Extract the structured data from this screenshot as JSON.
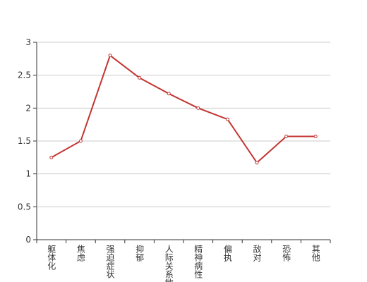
{
  "chart_data": {
    "type": "line",
    "categories": [
      "躯体化",
      "焦虑",
      "强迫症状",
      "抑郁",
      "人际关系敏感",
      "精神病性",
      "偏执",
      "敌对",
      "恐怖",
      "其他"
    ],
    "values": [
      1.25,
      1.5,
      2.8,
      2.46,
      2.22,
      2.0,
      1.83,
      1.17,
      1.57,
      1.57
    ],
    "color": "#c23531",
    "ylim": [
      0,
      3
    ],
    "yticks": [
      0,
      0.5,
      1,
      1.5,
      2,
      2.5,
      3
    ],
    "grid": true
  }
}
